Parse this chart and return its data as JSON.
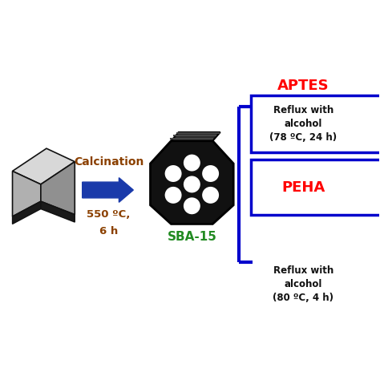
{
  "background_color": "#ffffff",
  "arrow_color": "#1a3aaa",
  "calcination_label": "Calcination",
  "temp_label": "550 ºC,",
  "time_label": "6 h",
  "sba15_label": "SBA-15",
  "sba15_color": "#228B22",
  "aptes_label": "APTES",
  "aptes_color": "#FF0000",
  "aptes_box_text": "Reflux with\nalcohol\n(78 ºC, 24 h)",
  "peha_label": "PEHA",
  "peha_color": "#FF0000",
  "peha_box_text": "Reflux with\nalcohol\n(80 ºC, 4 h)",
  "box_edge_color": "#0000CC",
  "text_color": "#8B4000",
  "bracket_color": "#0000CC",
  "block_face_color": "#c8c8c8",
  "block_dark_color": "#1a1a1a",
  "block_side_color": "#707070"
}
